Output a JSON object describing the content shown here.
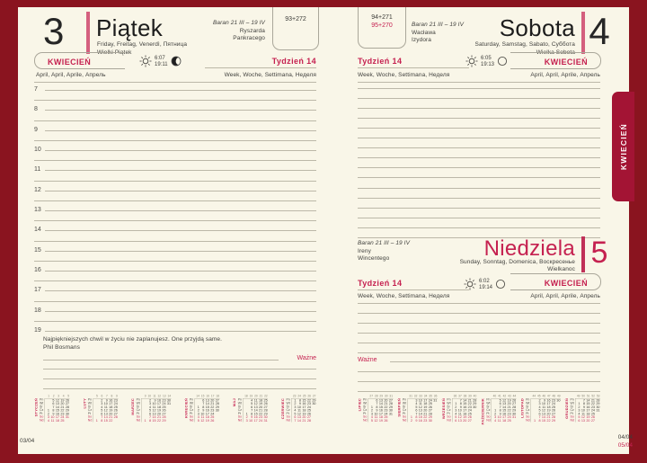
{
  "left_page": {
    "day_number": "3",
    "day_name": "Piątek",
    "day_langs": "Friday, Freitag, Venerdì, Пятница",
    "holiday": "Wielki Piątek",
    "zodiac": "Baran 21 III – 19 IV",
    "name_day_1": "Ryszarda",
    "name_day_2": "Pankracego",
    "day_of_year": "93+272",
    "month_label": "KWIECIEŃ",
    "month_langs": "April, April, Aprile, Апрель",
    "week_label": "Tydzień 14",
    "week_langs": "Week, Woche, Settimana, Неделя",
    "sunrise": "6:07",
    "sunset": "19:11",
    "hours": [
      "7",
      "8",
      "9",
      "10",
      "11",
      "12",
      "13",
      "14",
      "15",
      "16",
      "17",
      "18",
      "19"
    ],
    "quote": "Najpiękniejszych chwil w życiu nie zaplanujesz. One przyjdą same.",
    "quote_author": "Phil Bosmans",
    "important_label": "Ważne",
    "page_ref": "03/04"
  },
  "right_page": {
    "saturday": {
      "day_number": "4",
      "day_name": "Sobota",
      "day_langs": "Saturday, Samstag, Sabato, Суббота",
      "holiday": "Wielka Sobota",
      "zodiac": "Baran 21 III – 19 IV",
      "name_day_1": "Wacława",
      "name_day_2": "Izydora",
      "day_of_year_black": "94+271",
      "day_of_year_red": "95+270",
      "month_label": "KWIECIEŃ",
      "month_langs": "April, April, Aprile, Апрель",
      "week_label": "Tydzień 14",
      "week_langs": "Week, Woche, Settimana, Неделя",
      "sunrise": "6:05",
      "sunset": "19:13"
    },
    "sunday": {
      "day_number": "5",
      "day_name": "Niedziela",
      "day_langs": "Sunday, Sonntag, Domenica, Воскресенье",
      "holiday": "Wielkanoc",
      "zodiac": "Baran 21 III – 19 IV",
      "name_day_1": "Ireny",
      "name_day_2": "Wincentego",
      "month_label": "KWIECIEŃ",
      "month_langs": "April, April, Aprile, Апрель",
      "week_label": "Tydzień 14",
      "week_langs": "Week, Woche, Settimana, Неделя",
      "sunrise": "6:02",
      "sunset": "19:14"
    },
    "important_label": "Ważne",
    "page_ref_top": "04/04",
    "page_ref_bottom": "05/04"
  },
  "side_tab": {
    "label": "KWIECIEŃ"
  },
  "mini_calendars": {
    "day_labels": [
      "Pn",
      "Wt",
      "Śr",
      "Cz",
      "Pt",
      "So",
      "Nd"
    ],
    "left": [
      {
        "name": "STYCZEŃ",
        "weeks": [
          "1",
          "2",
          "3",
          "4",
          "5"
        ],
        "rows": [
          [
            "",
            "5",
            "12",
            "19",
            "26"
          ],
          [
            "",
            "6",
            "13",
            "20",
            "27"
          ],
          [
            "",
            "7",
            "14",
            "21",
            "28"
          ],
          [
            "1",
            "8",
            "15",
            "22",
            "29"
          ],
          [
            "2",
            "9",
            "16",
            "23",
            "30"
          ],
          [
            "3",
            "10",
            "17",
            "24",
            "31"
          ],
          [
            "4",
            "11",
            "18",
            "25",
            ""
          ]
        ]
      },
      {
        "name": "LUTY",
        "weeks": [
          "5",
          "6",
          "7",
          "8",
          "9"
        ],
        "rows": [
          [
            "",
            "2",
            "9",
            "16",
            "23"
          ],
          [
            "",
            "3",
            "10",
            "17",
            "24"
          ],
          [
            "",
            "4",
            "11",
            "18",
            "25"
          ],
          [
            "",
            "5",
            "12",
            "19",
            "26"
          ],
          [
            "",
            "6",
            "13",
            "20",
            "27"
          ],
          [
            "",
            "7",
            "14",
            "21",
            "28"
          ],
          [
            "1",
            "8",
            "15",
            "22",
            ""
          ]
        ]
      },
      {
        "name": "MARZEC",
        "weeks": [
          "9",
          "10",
          "11",
          "12",
          "13",
          "14"
        ],
        "rows": [
          [
            "",
            "2",
            "9",
            "16",
            "23",
            "30"
          ],
          [
            "",
            "3",
            "10",
            "17",
            "24",
            "31"
          ],
          [
            "",
            "4",
            "11",
            "18",
            "25",
            ""
          ],
          [
            "",
            "5",
            "12",
            "19",
            "26",
            ""
          ],
          [
            "",
            "6",
            "13",
            "20",
            "27",
            ""
          ],
          [
            "",
            "7",
            "14",
            "21",
            "28",
            ""
          ],
          [
            "1",
            "8",
            "15",
            "22",
            "29",
            ""
          ]
        ]
      },
      {
        "name": "KWIECIEŃ",
        "weeks": [
          "14",
          "15",
          "16",
          "17",
          "18"
        ],
        "rows": [
          [
            "",
            "6",
            "13",
            "20",
            "27"
          ],
          [
            "",
            "7",
            "14",
            "21",
            "28"
          ],
          [
            "1",
            "8",
            "15",
            "22",
            "29"
          ],
          [
            "2",
            "9",
            "16",
            "23",
            "30"
          ],
          [
            "3",
            "10",
            "17",
            "24",
            ""
          ],
          [
            "4",
            "11",
            "18",
            "25",
            ""
          ],
          [
            "5",
            "12",
            "19",
            "26",
            ""
          ]
        ]
      },
      {
        "name": "MAJ",
        "weeks": [
          "18",
          "19",
          "20",
          "21",
          "22"
        ],
        "rows": [
          [
            "",
            "4",
            "11",
            "18",
            "25"
          ],
          [
            "",
            "5",
            "12",
            "19",
            "26"
          ],
          [
            "",
            "6",
            "13",
            "20",
            "27"
          ],
          [
            "",
            "7",
            "14",
            "21",
            "28"
          ],
          [
            "1",
            "8",
            "15",
            "22",
            "29"
          ],
          [
            "2",
            "9",
            "16",
            "23",
            "30"
          ],
          [
            "3",
            "10",
            "17",
            "24",
            "31"
          ]
        ]
      },
      {
        "name": "CZERWIEC",
        "weeks": [
          "23",
          "24",
          "25",
          "26",
          "27"
        ],
        "rows": [
          [
            "1",
            "8",
            "15",
            "22",
            "29"
          ],
          [
            "2",
            "9",
            "16",
            "23",
            "30"
          ],
          [
            "3",
            "10",
            "17",
            "24",
            ""
          ],
          [
            "4",
            "11",
            "18",
            "25",
            ""
          ],
          [
            "5",
            "12",
            "19",
            "26",
            ""
          ],
          [
            "6",
            "13",
            "20",
            "27",
            ""
          ],
          [
            "7",
            "14",
            "21",
            "28",
            ""
          ]
        ]
      }
    ],
    "right": [
      {
        "name": "LIPIEC",
        "weeks": [
          "27",
          "28",
          "29",
          "30",
          "31"
        ],
        "rows": [
          [
            "",
            "6",
            "13",
            "20",
            "27"
          ],
          [
            "",
            "7",
            "14",
            "21",
            "28"
          ],
          [
            "1",
            "8",
            "15",
            "22",
            "29"
          ],
          [
            "2",
            "9",
            "16",
            "23",
            "30"
          ],
          [
            "3",
            "10",
            "17",
            "24",
            "31"
          ],
          [
            "4",
            "11",
            "18",
            "25",
            ""
          ],
          [
            "5",
            "12",
            "19",
            "26",
            ""
          ]
        ]
      },
      {
        "name": "SIERPIEŃ",
        "weeks": [
          "31",
          "32",
          "33",
          "34",
          "35",
          "36"
        ],
        "rows": [
          [
            "",
            "3",
            "10",
            "17",
            "24",
            "31"
          ],
          [
            "",
            "4",
            "11",
            "18",
            "25",
            ""
          ],
          [
            "",
            "5",
            "12",
            "19",
            "26",
            ""
          ],
          [
            "",
            "6",
            "13",
            "20",
            "27",
            ""
          ],
          [
            "",
            "7",
            "14",
            "21",
            "28",
            ""
          ],
          [
            "1",
            "8",
            "15",
            "22",
            "29",
            ""
          ],
          [
            "2",
            "9",
            "16",
            "23",
            "30",
            ""
          ]
        ]
      },
      {
        "name": "WRZESIEŃ",
        "weeks": [
          "36",
          "37",
          "38",
          "39",
          "40"
        ],
        "rows": [
          [
            "",
            "7",
            "14",
            "21",
            "28"
          ],
          [
            "1",
            "8",
            "15",
            "22",
            "29"
          ],
          [
            "2",
            "9",
            "16",
            "23",
            "30"
          ],
          [
            "3",
            "10",
            "17",
            "24",
            ""
          ],
          [
            "4",
            "11",
            "18",
            "25",
            ""
          ],
          [
            "5",
            "12",
            "19",
            "26",
            ""
          ],
          [
            "6",
            "13",
            "20",
            "27",
            ""
          ]
        ]
      },
      {
        "name": "PAŹDZIERNIK",
        "weeks": [
          "40",
          "41",
          "42",
          "43",
          "44"
        ],
        "rows": [
          [
            "",
            "5",
            "12",
            "19",
            "26"
          ],
          [
            "",
            "6",
            "13",
            "20",
            "27"
          ],
          [
            "",
            "7",
            "14",
            "21",
            "28"
          ],
          [
            "1",
            "8",
            "15",
            "22",
            "29"
          ],
          [
            "2",
            "9",
            "16",
            "23",
            "30"
          ],
          [
            "3",
            "10",
            "17",
            "24",
            "31"
          ],
          [
            "4",
            "11",
            "18",
            "25",
            ""
          ]
        ]
      },
      {
        "name": "LISTOPAD",
        "weeks": [
          "44",
          "45",
          "46",
          "47",
          "48",
          "49"
        ],
        "rows": [
          [
            "",
            "2",
            "9",
            "16",
            "23",
            "30"
          ],
          [
            "",
            "3",
            "10",
            "17",
            "24",
            ""
          ],
          [
            "",
            "4",
            "11",
            "18",
            "25",
            ""
          ],
          [
            "",
            "5",
            "12",
            "19",
            "26",
            ""
          ],
          [
            "",
            "6",
            "13",
            "20",
            "27",
            ""
          ],
          [
            "",
            "7",
            "14",
            "21",
            "28",
            ""
          ],
          [
            "1",
            "8",
            "15",
            "22",
            "29",
            ""
          ]
        ]
      },
      {
        "name": "GRUDZIEŃ",
        "weeks": [
          "49",
          "50",
          "51",
          "52",
          "53"
        ],
        "rows": [
          [
            "",
            "7",
            "14",
            "21",
            "28"
          ],
          [
            "1",
            "8",
            "15",
            "22",
            "29"
          ],
          [
            "2",
            "9",
            "16",
            "23",
            "30"
          ],
          [
            "3",
            "10",
            "17",
            "24",
            "31"
          ],
          [
            "4",
            "11",
            "18",
            "25",
            ""
          ],
          [
            "5",
            "12",
            "19",
            "26",
            ""
          ],
          [
            "6",
            "13",
            "20",
            "27",
            ""
          ]
        ]
      }
    ]
  }
}
